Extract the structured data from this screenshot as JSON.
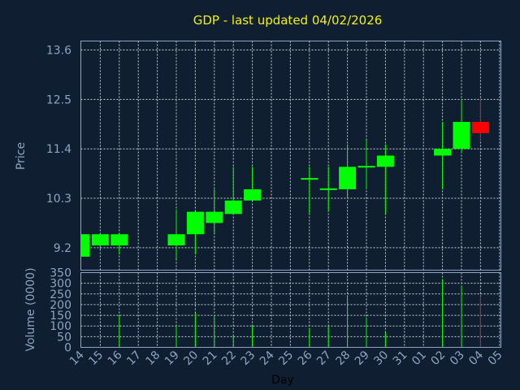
{
  "chart_data": {
    "type": "candlestick",
    "title": "GDP - last updated 04/02/2026",
    "xlabel": "Day",
    "ylabel": "Price",
    "volume_label": "Volume (0000)",
    "categories": [
      "14",
      "15",
      "16",
      "17",
      "18",
      "19",
      "20",
      "21",
      "22",
      "23",
      "24",
      "25",
      "26",
      "27",
      "28",
      "29",
      "30",
      "31",
      "01",
      "02",
      "03",
      "04",
      "05"
    ],
    "price_ticks": [
      9.2,
      10.3,
      11.4,
      12.5,
      13.6
    ],
    "price_ylim": [
      8.7,
      13.8
    ],
    "volume_ticks": [
      0,
      50,
      100,
      150,
      200,
      250,
      300,
      350
    ],
    "volume_ylim": [
      0,
      350
    ],
    "colors": {
      "up": "#00ff00",
      "down": "#ff0000",
      "title": "#f2f200",
      "background": "#0f1e30"
    },
    "grid": true,
    "series": [
      {
        "day": "14",
        "open": 9.0,
        "close": 9.5,
        "high": 9.5,
        "low": 9.0,
        "volume": 0
      },
      {
        "day": "15",
        "open": 9.25,
        "close": 9.5,
        "high": 9.5,
        "low": 9.15,
        "volume": 0
      },
      {
        "day": "16",
        "open": 9.25,
        "close": 9.5,
        "high": 9.5,
        "low": 9.05,
        "volume": 150
      },
      {
        "day": "19",
        "open": 9.25,
        "close": 9.5,
        "high": 10.05,
        "low": 8.95,
        "volume": 100
      },
      {
        "day": "20",
        "open": 9.5,
        "close": 10.0,
        "high": 10.0,
        "low": 9.05,
        "volume": 160
      },
      {
        "day": "21",
        "open": 9.75,
        "close": 10.0,
        "high": 10.5,
        "low": 9.5,
        "volume": 150
      },
      {
        "day": "22",
        "open": 9.95,
        "close": 10.25,
        "high": 11.0,
        "low": 9.95,
        "volume": 60
      },
      {
        "day": "23",
        "open": 10.25,
        "close": 10.5,
        "high": 11.0,
        "low": 10.25,
        "volume": 100
      },
      {
        "day": "26",
        "open": 10.73,
        "close": 10.75,
        "high": 11.0,
        "low": 9.95,
        "volume": 90
      },
      {
        "day": "27",
        "open": 10.5,
        "close": 10.52,
        "high": 11.0,
        "low": 10.0,
        "volume": 100
      },
      {
        "day": "28",
        "open": 10.5,
        "close": 11.0,
        "high": 11.5,
        "low": 10.3,
        "volume": 240
      },
      {
        "day": "29",
        "open": 10.99,
        "close": 11.02,
        "high": 11.6,
        "low": 10.5,
        "volume": 140
      },
      {
        "day": "30",
        "open": 11.0,
        "close": 11.25,
        "high": 11.5,
        "low": 9.95,
        "volume": 70
      },
      {
        "day": "02",
        "open": 11.25,
        "close": 11.4,
        "high": 12.0,
        "low": 10.5,
        "volume": 320
      },
      {
        "day": "03",
        "open": 11.4,
        "close": 12.0,
        "high": 12.5,
        "low": 11.3,
        "volume": 290
      },
      {
        "day": "04",
        "open": 12.0,
        "close": 11.75,
        "high": 12.5,
        "low": 11.6,
        "volume": 240
      }
    ]
  }
}
